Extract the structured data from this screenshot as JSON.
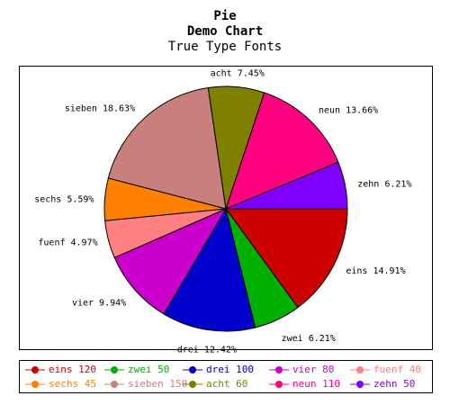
{
  "chart_data": {
    "type": "pie",
    "title": "Pie",
    "subtitle": "Demo Chart",
    "subsubtitle": "True Type Fonts",
    "slices": [
      {
        "name": "eins",
        "value": 120,
        "percent_label": "14.91%",
        "color": "#cc0000"
      },
      {
        "name": "zwei",
        "value": 50,
        "percent_label": "6.21%",
        "color": "#00b000"
      },
      {
        "name": "drei",
        "value": 100,
        "percent_label": "12.42%",
        "color": "#0000cc"
      },
      {
        "name": "vier",
        "value": 80,
        "percent_label": "9.94%",
        "color": "#cc00cc"
      },
      {
        "name": "fuenf",
        "value": 40,
        "percent_label": "4.97%",
        "color": "#ff8080"
      },
      {
        "name": "sechs",
        "value": 45,
        "percent_label": "5.59%",
        "color": "#ff8000"
      },
      {
        "name": "sieben",
        "value": 150,
        "percent_label": "18.63%",
        "color": "#c8807c"
      },
      {
        "name": "acht",
        "value": 60,
        "percent_label": "7.45%",
        "color": "#808000"
      },
      {
        "name": "neun",
        "value": 110,
        "percent_label": "13.66%",
        "color": "#ff0080"
      },
      {
        "name": "zehn",
        "value": 50,
        "percent_label": "6.21%",
        "color": "#8000ff"
      }
    ],
    "legend_placement": "bottom"
  }
}
